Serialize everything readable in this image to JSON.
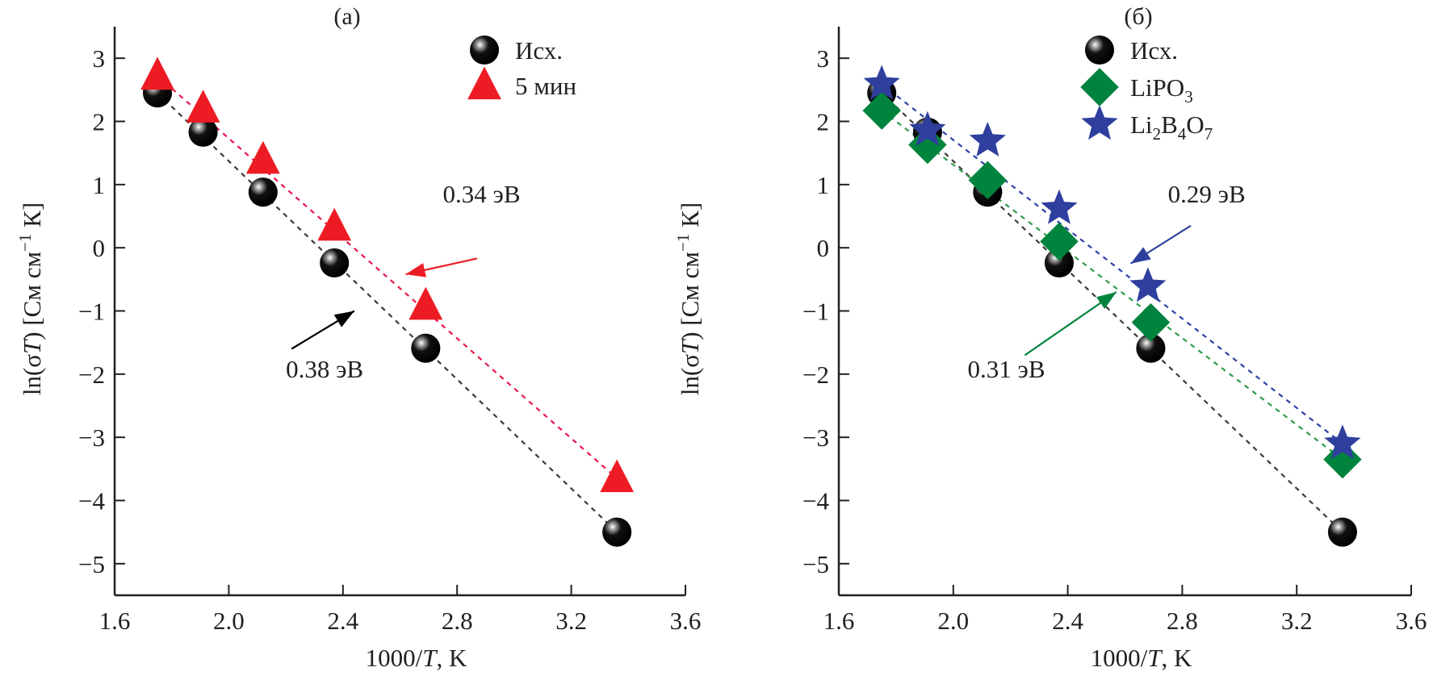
{
  "chart_data": [
    {
      "panel_label": "(а)",
      "type": "scatter",
      "xlabel": "1000/T, K",
      "xlabel_parts": [
        "1000/",
        "T",
        ", K"
      ],
      "ylabel_parts": [
        "ln(σ",
        "T",
        ") [См см",
        "−1",
        " К]"
      ],
      "xlim": [
        1.6,
        3.6
      ],
      "ylim": [
        -5.5,
        3.5
      ],
      "xticks": [
        1.6,
        2.0,
        2.4,
        2.8,
        3.2,
        3.6
      ],
      "xtick_labels": [
        "1.6",
        "2.0",
        "2.4",
        "2.8",
        "3.2",
        "3.6"
      ],
      "yticks": [
        3,
        2,
        1,
        0,
        -1,
        -2,
        -3,
        -4,
        -5
      ],
      "ytick_labels": [
        "3",
        "2",
        "1",
        "0",
        "−1",
        "−2",
        "−3",
        "−4",
        "−5"
      ],
      "grid": false,
      "legend_position": "top-right",
      "series": [
        {
          "name": "Исх.",
          "marker": "sphere",
          "color": "#000000",
          "line_color": "#3a3a3a",
          "x": [
            1.75,
            1.91,
            2.12,
            2.37,
            2.69,
            3.36
          ],
          "y": [
            2.45,
            1.83,
            0.88,
            -0.24,
            -1.59,
            -4.5
          ]
        },
        {
          "name": "5 мин",
          "marker": "triangle",
          "color": "#ed1c24",
          "line_color": "#e8174a",
          "x": [
            1.75,
            1.91,
            2.12,
            2.37,
            2.69,
            3.36
          ],
          "y": [
            2.72,
            2.2,
            1.39,
            0.33,
            -0.92,
            -3.65
          ]
        }
      ],
      "annotations": [
        {
          "text": "0.34 эВ",
          "color": "#ed1c24",
          "text_x": 2.75,
          "text_y": 0.72,
          "arrow_from": [
            2.87,
            -0.17
          ],
          "arrow_to": [
            2.62,
            -0.42
          ]
        },
        {
          "text": "0.38 эВ",
          "color": "#000000",
          "text_x": 2.2,
          "text_y": -2.05,
          "arrow_from": [
            2.22,
            -1.6
          ],
          "arrow_to": [
            2.44,
            -1.0
          ]
        }
      ]
    },
    {
      "panel_label": "(б)",
      "type": "scatter",
      "xlabel": "1000/T, K",
      "xlabel_parts": [
        "1000/",
        "T",
        ", K"
      ],
      "ylabel_parts": [
        "ln(σ",
        "T",
        ") [См см",
        "−1",
        " К]"
      ],
      "xlim": [
        1.6,
        3.6
      ],
      "ylim": [
        -5.5,
        3.5
      ],
      "xticks": [
        1.6,
        2.0,
        2.4,
        2.8,
        3.2,
        3.6
      ],
      "xtick_labels": [
        "1.6",
        "2.0",
        "2.4",
        "2.8",
        "3.2",
        "3.6"
      ],
      "yticks": [
        3,
        2,
        1,
        0,
        -1,
        -2,
        -3,
        -4,
        -5
      ],
      "ytick_labels": [
        "3",
        "2",
        "1",
        "0",
        "−1",
        "−2",
        "−3",
        "−4",
        "−5"
      ],
      "grid": false,
      "legend_position": "top-right",
      "series": [
        {
          "name": "Исх.",
          "marker": "sphere",
          "color": "#000000",
          "line_color": "#3a3a3a",
          "x": [
            1.75,
            1.91,
            2.12,
            2.37,
            2.69,
            3.36
          ],
          "y": [
            2.45,
            1.83,
            0.88,
            -0.24,
            -1.59,
            -4.5
          ]
        },
        {
          "name": "LiPO3",
          "name_parts": [
            [
              "LiPO",
              ""
            ],
            [
              "3",
              "sub"
            ]
          ],
          "marker": "diamond",
          "color": "#00843d",
          "line_color": "#2f9a4a",
          "x": [
            1.75,
            1.91,
            2.12,
            2.37,
            2.69,
            3.36
          ],
          "y": [
            2.17,
            1.63,
            1.07,
            0.1,
            -1.18,
            -3.35
          ]
        },
        {
          "name": "Li2B4O7",
          "name_parts": [
            [
              "Li",
              ""
            ],
            [
              "2",
              "sub"
            ],
            [
              "B",
              ""
            ],
            [
              "4",
              "sub"
            ],
            [
              "O",
              ""
            ],
            [
              "7",
              "sub"
            ]
          ],
          "marker": "star",
          "color": "#2e3f9e",
          "line_color": "#2e3fa8",
          "x": [
            1.75,
            1.91,
            2.12,
            2.37,
            2.68,
            3.36
          ],
          "y": [
            2.59,
            1.86,
            1.69,
            0.62,
            -0.61,
            -3.1
          ]
        }
      ],
      "annotations": [
        {
          "text": "0.29 эВ",
          "color": "#2e3f9e",
          "text_x": 2.75,
          "text_y": 0.72,
          "arrow_from": [
            2.83,
            0.35
          ],
          "arrow_to": [
            2.62,
            -0.25
          ]
        },
        {
          "text": "0.31 эВ",
          "color": "#00843d",
          "text_x": 2.05,
          "text_y": -2.05,
          "arrow_from": [
            2.25,
            -1.7
          ],
          "arrow_to": [
            2.57,
            -0.7
          ]
        }
      ]
    }
  ]
}
